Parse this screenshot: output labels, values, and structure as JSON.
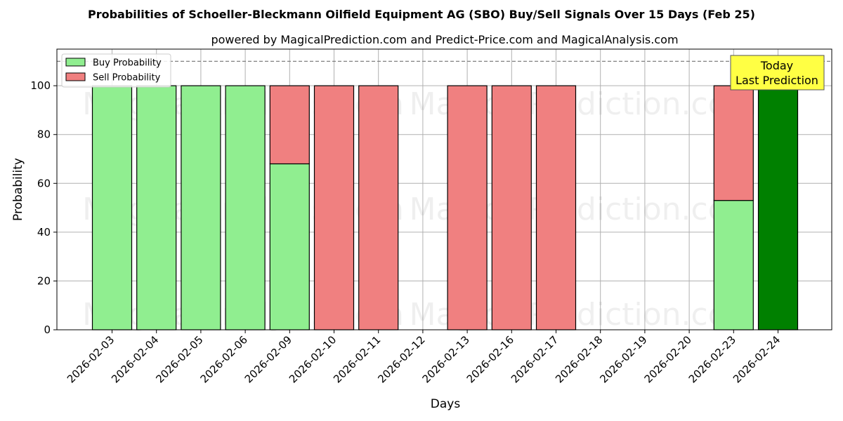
{
  "chart_data": {
    "type": "bar",
    "title": "Probabilities of Schoeller-Bleckmann Oilfield Equipment AG (SBO) Buy/Sell Signals Over 15 Days (Feb 25)",
    "subtitle": "powered by MagicalPrediction.com and Predict-Price.com and MagicalAnalysis.com",
    "xlabel": "Days",
    "ylabel": "Probability",
    "ylim": [
      0,
      115
    ],
    "yticks": [
      0,
      20,
      40,
      60,
      80,
      100
    ],
    "reference_line": 110,
    "grid": true,
    "legend_position": "top-left",
    "categories": [
      "2026-02-03",
      "2026-02-04",
      "2026-02-05",
      "2026-02-06",
      "2026-02-09",
      "2026-02-10",
      "2026-02-11",
      "2026-02-12",
      "2026-02-13",
      "2026-02-16",
      "2026-02-17",
      "2026-02-18",
      "2026-02-19",
      "2026-02-20",
      "2026-02-23",
      "2026-02-24"
    ],
    "series": [
      {
        "name": "Buy Probability",
        "color": "#90ee90",
        "values": [
          100,
          100,
          100,
          100,
          68,
          0,
          0,
          0,
          0,
          0,
          0,
          0,
          0,
          0,
          53,
          100
        ]
      },
      {
        "name": "Sell Probability",
        "color": "#f08080",
        "values": [
          0,
          0,
          0,
          0,
          32,
          100,
          100,
          0,
          100,
          100,
          100,
          0,
          0,
          0,
          47,
          0
        ]
      }
    ],
    "highlight": {
      "index": 15,
      "color": "#008000",
      "label_line1": "Today",
      "label_line2": "Last Prediction",
      "label_bg": "#ffff44"
    },
    "watermarks": [
      "MagicalAnalysis.com",
      "MagicalPrediction.com"
    ]
  }
}
